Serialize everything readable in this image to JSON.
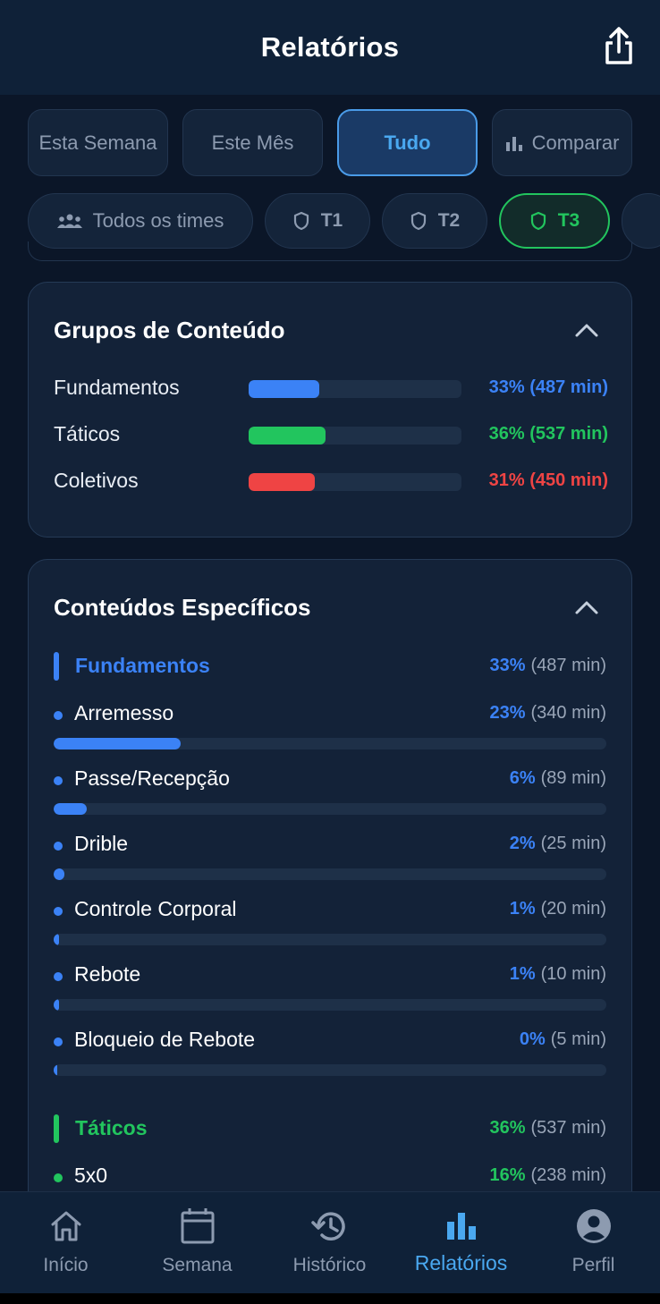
{
  "header": {
    "title": "Relatórios",
    "share_icon": "share-icon"
  },
  "periods": [
    {
      "label": "Esta Semana",
      "active": false
    },
    {
      "label": "Este Mês",
      "active": false
    },
    {
      "label": "Tudo",
      "active": true
    },
    {
      "label": "Comparar",
      "icon": "bar-chart-icon",
      "active": false
    }
  ],
  "teams": [
    {
      "label": "Todos os times",
      "icon": "group-icon"
    },
    {
      "label": "T1",
      "icon": "shield-icon"
    },
    {
      "label": "T2",
      "icon": "shield-icon"
    },
    {
      "label": "T3",
      "icon": "shield-icon",
      "active": true
    }
  ],
  "groups_card": {
    "title": "Grupos de Conteúdo",
    "rows": [
      {
        "label": "Fundamentos",
        "percent": 33,
        "value": "33% (487 min)",
        "color": "#3b82f6"
      },
      {
        "label": "Táticos",
        "percent": 36,
        "value": "36% (537 min)",
        "color": "#22c55e"
      },
      {
        "label": "Coletivos",
        "percent": 31,
        "value": "31% (450 min)",
        "color": "#ef4444"
      }
    ]
  },
  "specific_card": {
    "title": "Conteúdos Específicos",
    "sections": [
      {
        "name": "Fundamentos",
        "pct": "33%",
        "mins": "(487 min)",
        "color": "#3b82f6",
        "items": [
          {
            "name": "Arremesso",
            "pct": "23%",
            "mins": "(340 min)",
            "fill": 23
          },
          {
            "name": "Passe/Recepção",
            "pct": "6%",
            "mins": "(89 min)",
            "fill": 6
          },
          {
            "name": "Drible",
            "pct": "2%",
            "mins": "(25 min)",
            "fill": 2
          },
          {
            "name": "Controle Corporal",
            "pct": "1%",
            "mins": "(20 min)",
            "fill": 1
          },
          {
            "name": "Rebote",
            "pct": "1%",
            "mins": "(10 min)",
            "fill": 1
          },
          {
            "name": "Bloqueio de Rebote",
            "pct": "0%",
            "mins": "(5 min)",
            "fill": 0
          }
        ]
      },
      {
        "name": "Táticos",
        "pct": "36%",
        "mins": "(537 min)",
        "color": "#22c55e",
        "items": [
          {
            "name": "5x0",
            "pct": "16%",
            "mins": "(238 min)",
            "fill": 16
          }
        ]
      }
    ]
  },
  "nav": [
    {
      "label": "Início",
      "icon": "home-icon"
    },
    {
      "label": "Semana",
      "icon": "calendar-icon"
    },
    {
      "label": "Histórico",
      "icon": "history-icon"
    },
    {
      "label": "Relatórios",
      "icon": "bar-chart-icon",
      "active": true
    },
    {
      "label": "Perfil",
      "icon": "profile-icon"
    }
  ],
  "colors": {
    "accent": "#4aa8f0",
    "green": "#22c55e",
    "blue": "#3b82f6",
    "red": "#ef4444"
  }
}
